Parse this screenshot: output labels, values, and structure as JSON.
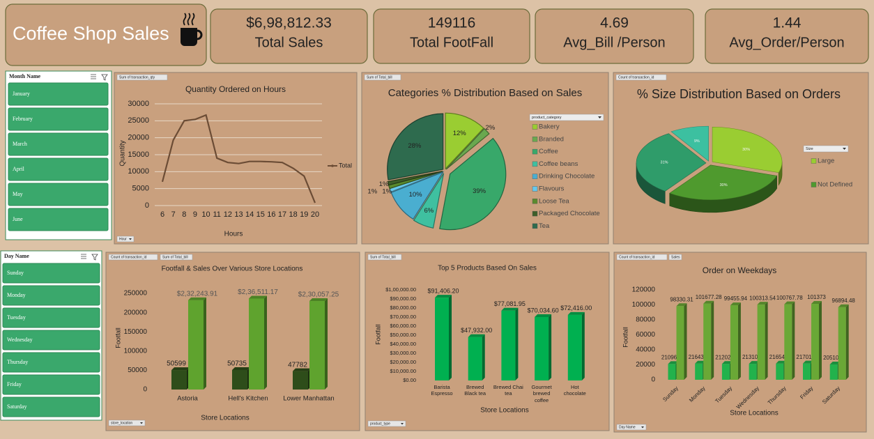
{
  "header": {
    "title": "Coffee Shop Sales"
  },
  "kpis": [
    {
      "value": "$6,98,812.33",
      "label": "Total Sales"
    },
    {
      "value": "149116",
      "label": "Total FootFall"
    },
    {
      "value": "4.69",
      "label": "Avg_Bill /Person"
    },
    {
      "value": "1.44",
      "label": "Avg_Order/Person"
    }
  ],
  "slicers": [
    {
      "title": "Month Name",
      "items": [
        "January",
        "February",
        "March",
        "April",
        "May",
        "June"
      ]
    },
    {
      "title": "Day Name",
      "items": [
        "Sunday",
        "Monday",
        "Tuesday",
        "Wednesday",
        "Thursday",
        "Friday",
        "Saturday"
      ]
    }
  ],
  "chart_data": [
    {
      "type": "line",
      "title": "Quantity Ordered on Hours",
      "field_buttons": [
        "Sum of transaction_qty"
      ],
      "axis_button": "Hour",
      "x_label": "Hours",
      "y_label": "Quantity",
      "categories": [
        "6",
        "7",
        "8",
        "9",
        "10",
        "11",
        "12",
        "13",
        "14",
        "15",
        "16",
        "17",
        "18",
        "19",
        "20"
      ],
      "series": [
        {
          "name": "Total",
          "color": "#6b4c35",
          "values": [
            7000,
            19300,
            25000,
            25400,
            26700,
            14000,
            12700,
            12400,
            13000,
            13000,
            12900,
            12700,
            11000,
            8700,
            800
          ]
        }
      ],
      "ylim": [
        0,
        30000
      ],
      "yticks": [
        0,
        5000,
        10000,
        15000,
        20000,
        25000,
        30000
      ],
      "grid": true,
      "legend": "right"
    },
    {
      "type": "pie",
      "title": "Categories % Distribution Based on Sales",
      "field_buttons": [
        "Sum of Total_bill"
      ],
      "legend_title": "product_category",
      "categories": [
        "Bakery",
        "Branded",
        "Coffee",
        "Coffee beans",
        "Drinking Chocolate",
        "Flavours",
        "Loose Tea",
        "Packaged Chocolate",
        "Tea"
      ],
      "values": [
        12,
        2,
        39,
        6,
        10,
        1,
        1,
        1,
        28
      ],
      "value_labels": [
        "12%",
        "2%",
        "39%",
        "6%",
        "10%",
        "1%",
        "1%",
        "1%",
        "28%"
      ],
      "colors": [
        "#9acd32",
        "#6aa84f",
        "#38a86a",
        "#3fc0a0",
        "#4aaed0",
        "#66c8ec",
        "#5a8a2e",
        "#3e5f2a",
        "#2e6b4e"
      ],
      "legend": "right"
    },
    {
      "type": "pie",
      "3d": true,
      "title": "% Size Distribution Based on Orders",
      "field_buttons": [
        "Count of transaction_id"
      ],
      "legend_title": "Size",
      "categories": [
        "Large",
        "Not Defined",
        null,
        null
      ],
      "values": [
        30,
        30,
        31,
        9
      ],
      "value_labels": [
        "30%",
        "30%",
        "31%",
        "9%"
      ],
      "colors": [
        "#9acd32",
        "#4f9a2e",
        "#2f9c6a",
        "#3cc0a0"
      ],
      "legend": "right"
    },
    {
      "type": "bar",
      "3d": true,
      "title": "Footfall & Sales Over Various Store Locations",
      "field_buttons": [
        "Count of transaction_id",
        "Sum of Total_bill"
      ],
      "axis_button": "store_location",
      "x_label": "Store Locations",
      "y_label": "Footfall",
      "categories": [
        "Astoria",
        "Hell's Kitchen",
        "Lower Manhattan"
      ],
      "series": [
        {
          "color": "#2e4d1a",
          "values": [
            50599,
            50735,
            47782
          ]
        },
        {
          "color": "#5fa32e",
          "values": [
            232243.91,
            236511.17,
            230057.25
          ],
          "value_labels": [
            "$2,32,243.91",
            "$2,36,511.17",
            "$2,30,057.25"
          ]
        }
      ],
      "ylim": [
        0,
        260000
      ],
      "yticks": [
        0,
        50000,
        100000,
        150000,
        200000,
        250000
      ],
      "grid": false
    },
    {
      "type": "bar",
      "3d": true,
      "title": "Top 5 Products Based On Sales",
      "field_buttons": [
        "Sum of Total_bill"
      ],
      "axis_button": "product_type",
      "x_label": "Store Locations",
      "y_label": "Footfall",
      "categories": [
        "Barista Espresso",
        "Brewed Black tea",
        "Brewed Chai tea",
        "Gourmet brewed coffee",
        "Hot chocolate"
      ],
      "values": [
        91406.2,
        47932,
        77081.95,
        70034.6,
        72416
      ],
      "value_labels": [
        "$91,406.20",
        "$47,932.00",
        "$77,081.95",
        "$70,034.60",
        "$72,416.00"
      ],
      "color": "#00b050",
      "ylim": [
        0,
        100000
      ],
      "yticks": [
        {
          "value": 0,
          "label": "$0.00"
        },
        {
          "value": 10000,
          "label": "$10,000.00"
        },
        {
          "value": 20000,
          "label": "$20,000.00"
        },
        {
          "value": 30000,
          "label": "$30,000.00"
        },
        {
          "value": 40000,
          "label": "$40,000.00"
        },
        {
          "value": 50000,
          "label": "$50,000.00"
        },
        {
          "value": 60000,
          "label": "$60,000.00"
        },
        {
          "value": 70000,
          "label": "$70,000.00"
        },
        {
          "value": 80000,
          "label": "$80,000.00"
        },
        {
          "value": 90000,
          "label": "$90,000.00"
        },
        {
          "value": 100000,
          "label": "$1,00,000.00"
        }
      ],
      "grid": false
    },
    {
      "type": "bar",
      "3d": true,
      "title": "Order on Weekdays",
      "field_buttons": [
        "Count of transaction_id",
        "Sales"
      ],
      "axis_button": "Day Name",
      "x_label": "Store Locations",
      "y_label": "Footfall",
      "categories": [
        "Sunday",
        "Monday",
        "Tuesday",
        "Wednesday",
        "Thursday",
        "Friday",
        "Saturday"
      ],
      "series": [
        {
          "color": "#22b24c",
          "values": [
            21096,
            21643,
            21202,
            21310,
            21654,
            21701,
            20510
          ]
        },
        {
          "color": "#6aa836",
          "values": [
            98330.31,
            101677.28,
            99455.94,
            100313.54,
            100767.78,
            101373,
            96894.48
          ]
        }
      ],
      "ylim": [
        0,
        120000
      ],
      "yticks": [
        0,
        20000,
        40000,
        60000,
        80000,
        100000,
        120000
      ],
      "grid": false
    }
  ]
}
